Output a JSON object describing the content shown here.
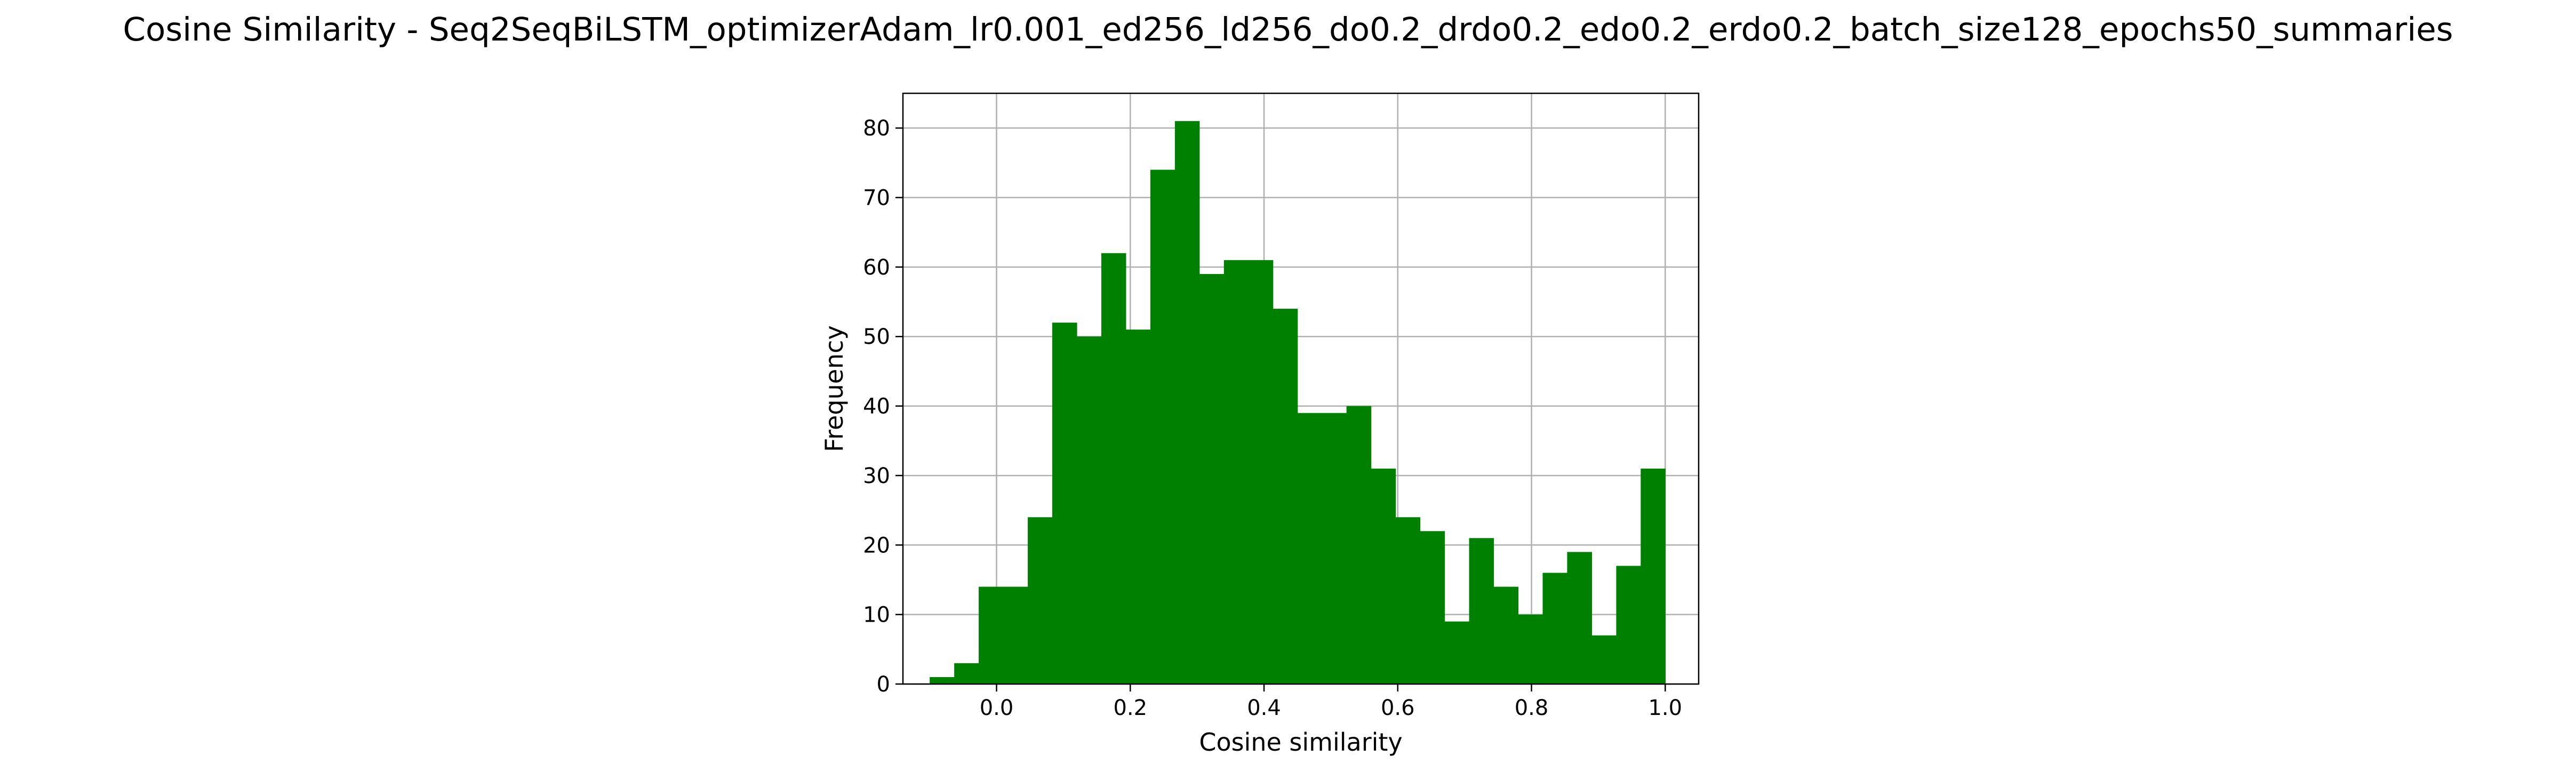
{
  "chart_data": {
    "type": "bar",
    "title": "Cosine Similarity - Seq2SeqBiLSTM_optimizerAdam_lr0.001_ed256_ld256_do0.2_drdo0.2_edo0.2_erdo0.2_batch_size128_epochs50_summaries",
    "xlabel": "Cosine similarity",
    "ylabel": "Frequency",
    "xlim": [
      -0.14,
      1.05
    ],
    "ylim": [
      0,
      85
    ],
    "grid": true,
    "bar_color": "#008000",
    "bin_edges": [
      -0.1,
      -0.0633,
      -0.0267,
      0.01,
      0.0467,
      0.0833,
      0.12,
      0.1567,
      0.1933,
      0.23,
      0.2667,
      0.3033,
      0.34,
      0.3767,
      0.4133,
      0.45,
      0.4867,
      0.5233,
      0.56,
      0.5967,
      0.6333,
      0.67,
      0.7067,
      0.7433,
      0.78,
      0.8167,
      0.8533,
      0.89,
      0.9267,
      0.9633,
      1.0
    ],
    "counts": [
      1,
      3,
      14,
      14,
      24,
      52,
      50,
      62,
      51,
      74,
      81,
      59,
      61,
      61,
      54,
      39,
      39,
      40,
      31,
      24,
      22,
      9,
      21,
      14,
      10,
      16,
      19,
      7,
      17,
      31
    ],
    "x_ticks": [
      "0.0",
      "0.2",
      "0.4",
      "0.6",
      "0.8",
      "1.0"
    ],
    "x_tick_values": [
      0.0,
      0.2,
      0.4,
      0.6,
      0.8,
      1.0
    ],
    "y_ticks": [
      "0",
      "10",
      "20",
      "30",
      "40",
      "50",
      "60",
      "70",
      "80"
    ],
    "y_tick_values": [
      0,
      10,
      20,
      30,
      40,
      50,
      60,
      70,
      80
    ]
  }
}
